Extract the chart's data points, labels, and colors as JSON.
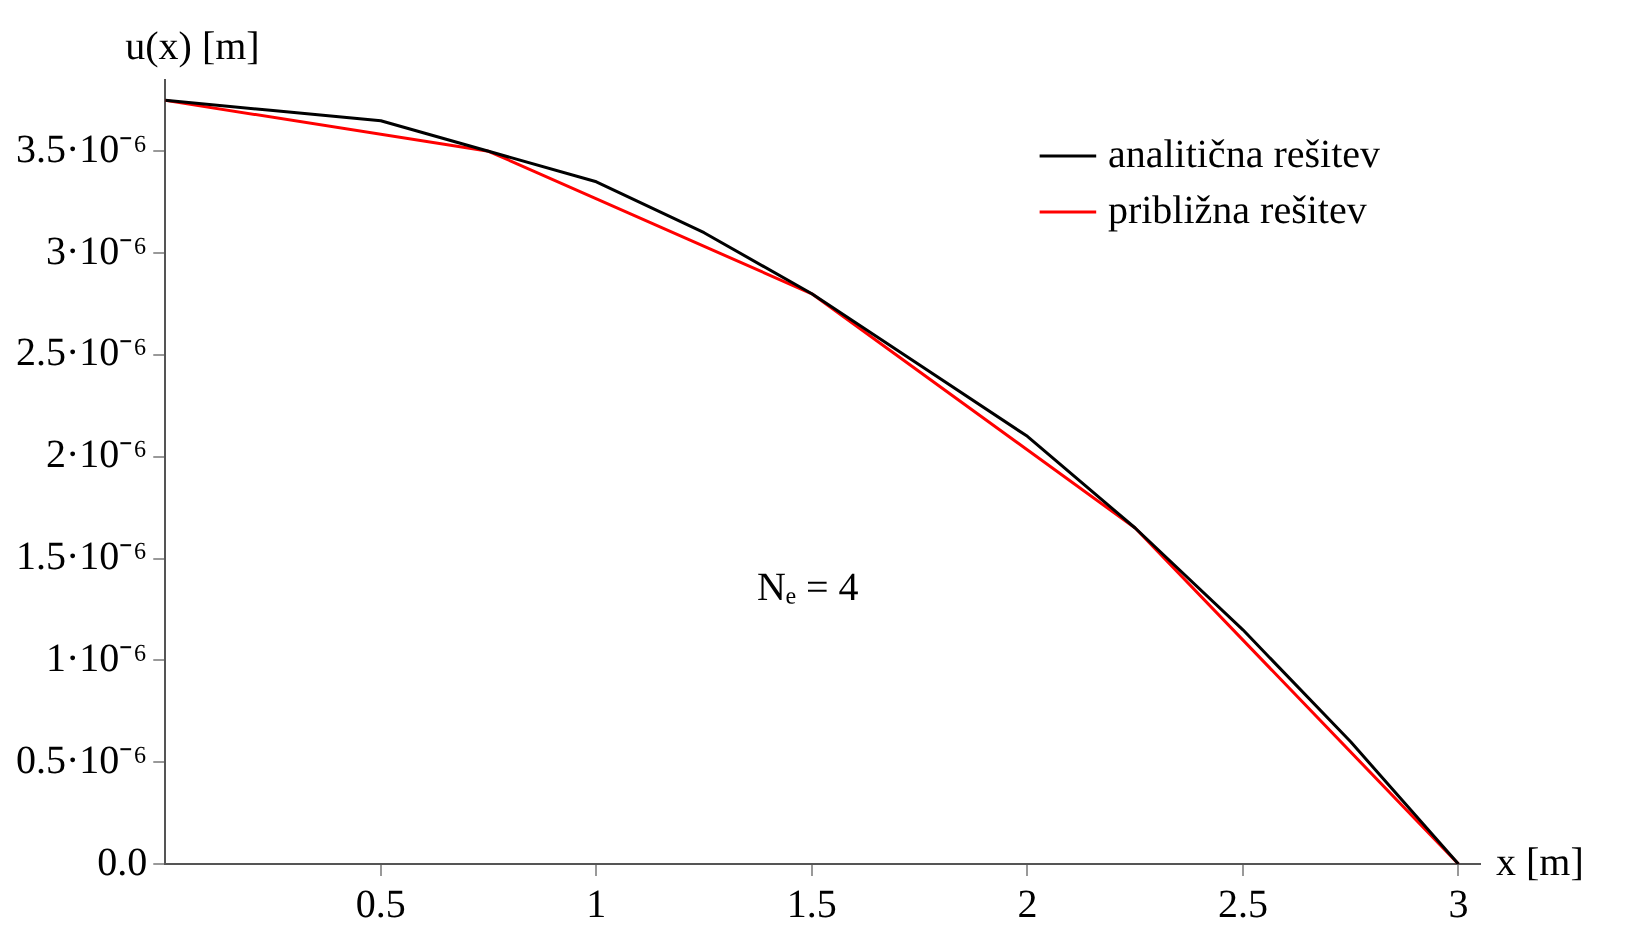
{
  "chart_data": {
    "type": "line",
    "xlabel": "x [m]",
    "ylabel": "u(x) [m]",
    "annotations": [
      "Nₑ = 4"
    ],
    "legend": "top right",
    "marker": "none",
    "line_style": "solid",
    "xlim": [
      0,
      3.05
    ],
    "ylim": [
      0,
      3.85e-06
    ],
    "xticks": [
      0.5,
      1,
      1.5,
      2,
      2.5,
      3
    ],
    "yticks": [
      {
        "value": 0,
        "label": "0.0"
      },
      {
        "value": 5e-07,
        "label": "0.5·10⁻⁶"
      },
      {
        "value": 1e-06,
        "label": "1·10⁻⁶"
      },
      {
        "value": 1.5e-06,
        "label": "1.5·10⁻⁶"
      },
      {
        "value": 2e-06,
        "label": "2·10⁻⁶"
      },
      {
        "value": 2.5e-06,
        "label": "2.5·10⁻⁶"
      },
      {
        "value": 3e-06,
        "label": "3·10⁻⁶"
      },
      {
        "value": 3.5e-06,
        "label": "3.5·10⁻⁶"
      }
    ],
    "series": [
      {
        "name": "analitična rešitev",
        "color": "#000000",
        "x": [
          0,
          0.25,
          0.5,
          0.75,
          1,
          1.25,
          1.5,
          1.75,
          2,
          2.25,
          2.5,
          2.75,
          3
        ],
        "values": [
          3.75e-06,
          3.7e-06,
          3.65e-06,
          3.5e-06,
          3.35e-06,
          3.1e-06,
          2.8e-06,
          2.45e-06,
          2.1e-06,
          1.65e-06,
          1.15e-06,
          6e-07,
          0
        ]
      },
      {
        "name": "približna rešitev",
        "color": "#ff0000",
        "x": [
          0,
          0.75,
          1.5,
          2.25,
          3
        ],
        "values": [
          3.75e-06,
          3.5e-06,
          2.8e-06,
          1.65e-06,
          0
        ]
      }
    ]
  }
}
